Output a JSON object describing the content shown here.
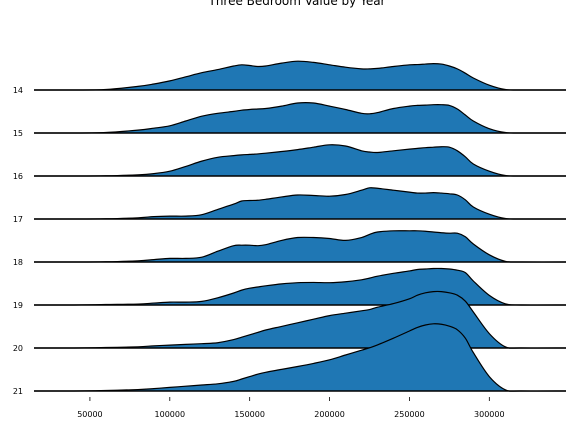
{
  "chart_data": {
    "type": "ridgeline",
    "title": "Three Bedroom Value by Year",
    "xlabel": "",
    "ylabel": "",
    "xlim": [
      15000,
      348000
    ],
    "x_ticks": [
      "50000",
      "100000",
      "150000",
      "200000",
      "250000",
      "300000"
    ],
    "x_tick_values": [
      50000,
      100000,
      150000,
      200000,
      250000,
      300000
    ],
    "fill_color": "#1f77b4",
    "line_color": "#000000",
    "grid": false,
    "legend": "none",
    "x": [
      15000,
      40000,
      60000,
      80000,
      90000,
      100000,
      110000,
      120000,
      130000,
      140000,
      145000,
      150000,
      155000,
      160000,
      170000,
      180000,
      190000,
      200000,
      210000,
      220000,
      225000,
      230000,
      240000,
      250000,
      255000,
      260000,
      265000,
      270000,
      275000,
      280000,
      285000,
      290000,
      300000,
      310000,
      320000,
      348000
    ],
    "series": [
      {
        "name": "14",
        "values": [
          0.0,
          0.0,
          0.02,
          0.15,
          0.25,
          0.38,
          0.55,
          0.72,
          0.85,
          1.0,
          1.05,
          1.02,
          0.98,
          1.0,
          1.12,
          1.2,
          1.15,
          1.05,
          0.95,
          0.88,
          0.88,
          0.9,
          0.98,
          1.05,
          1.06,
          1.08,
          1.1,
          1.08,
          1.0,
          0.88,
          0.7,
          0.5,
          0.2,
          0.02,
          0.0,
          0.0
        ]
      },
      {
        "name": "15",
        "values": [
          0.0,
          0.0,
          0.02,
          0.12,
          0.2,
          0.3,
          0.5,
          0.7,
          0.82,
          0.9,
          0.95,
          0.98,
          1.0,
          1.02,
          1.12,
          1.25,
          1.25,
          1.12,
          0.98,
          0.82,
          0.8,
          0.85,
          1.02,
          1.12,
          1.15,
          1.16,
          1.18,
          1.18,
          1.15,
          1.0,
          0.75,
          0.5,
          0.18,
          0.02,
          0.0,
          0.0
        ]
      },
      {
        "name": "16",
        "values": [
          0.0,
          0.0,
          0.01,
          0.05,
          0.1,
          0.2,
          0.4,
          0.62,
          0.78,
          0.85,
          0.88,
          0.9,
          0.92,
          0.95,
          1.02,
          1.1,
          1.2,
          1.3,
          1.25,
          1.05,
          1.0,
          0.98,
          1.05,
          1.12,
          1.15,
          1.18,
          1.2,
          1.22,
          1.2,
          1.05,
          0.8,
          0.5,
          0.2,
          0.02,
          0.0,
          0.0
        ]
      },
      {
        "name": "17",
        "values": [
          0.0,
          0.0,
          0.01,
          0.05,
          0.1,
          0.12,
          0.12,
          0.18,
          0.4,
          0.62,
          0.75,
          0.77,
          0.78,
          0.82,
          0.92,
          1.0,
          0.98,
          0.95,
          1.02,
          1.2,
          1.3,
          1.28,
          1.2,
          1.12,
          1.08,
          1.08,
          1.1,
          1.08,
          1.05,
          1.0,
          0.8,
          0.5,
          0.2,
          0.02,
          0.0,
          0.0
        ]
      },
      {
        "name": "18",
        "values": [
          0.0,
          0.0,
          0.01,
          0.05,
          0.1,
          0.15,
          0.15,
          0.2,
          0.45,
          0.68,
          0.7,
          0.7,
          0.68,
          0.72,
          0.9,
          1.02,
          1.02,
          0.98,
          0.9,
          1.02,
          1.15,
          1.25,
          1.3,
          1.3,
          1.3,
          1.28,
          1.25,
          1.22,
          1.2,
          1.2,
          1.05,
          0.75,
          0.3,
          0.03,
          0.0,
          0.0
        ]
      },
      {
        "name": "19",
        "values": [
          0.0,
          0.0,
          0.02,
          0.04,
          0.08,
          0.12,
          0.12,
          0.15,
          0.3,
          0.5,
          0.62,
          0.7,
          0.75,
          0.8,
          0.88,
          0.93,
          0.94,
          0.93,
          0.97,
          1.05,
          1.12,
          1.2,
          1.32,
          1.42,
          1.48,
          1.5,
          1.52,
          1.52,
          1.5,
          1.45,
          1.35,
          1.0,
          0.4,
          0.05,
          0.0,
          0.0
        ]
      },
      {
        "name": "20",
        "values": [
          0.0,
          0.0,
          0.02,
          0.05,
          0.09,
          0.12,
          0.15,
          0.18,
          0.22,
          0.35,
          0.45,
          0.55,
          0.65,
          0.75,
          0.9,
          1.05,
          1.2,
          1.35,
          1.45,
          1.55,
          1.6,
          1.7,
          1.85,
          2.05,
          2.2,
          2.3,
          2.35,
          2.35,
          2.3,
          2.2,
          1.95,
          1.5,
          0.6,
          0.05,
          0.0,
          0.0
        ]
      },
      {
        "name": "21",
        "values": [
          0.0,
          0.0,
          0.02,
          0.06,
          0.1,
          0.15,
          0.2,
          0.25,
          0.3,
          0.4,
          0.5,
          0.6,
          0.7,
          0.78,
          0.9,
          1.02,
          1.15,
          1.3,
          1.5,
          1.7,
          1.8,
          1.92,
          2.2,
          2.5,
          2.65,
          2.75,
          2.8,
          2.78,
          2.7,
          2.55,
          2.2,
          1.6,
          0.6,
          0.05,
          0.0,
          0.0
        ]
      }
    ]
  }
}
